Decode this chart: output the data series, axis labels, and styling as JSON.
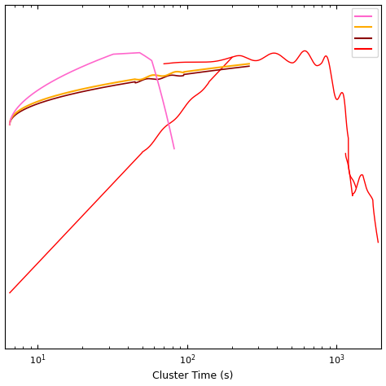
{
  "xlabel": "Cluster Time (s)",
  "xmin": 6.0,
  "xmax": 2000,
  "ymin": -1.4,
  "ymax": 0.75,
  "color_magenta": "#ff66cc",
  "color_yellow": "#ffaa00",
  "color_darkred": "#8b0000",
  "color_red": "#ff0000",
  "legend_colors": [
    "#ff66cc",
    "#ffaa00",
    "#8b0000",
    "#ff0000"
  ]
}
